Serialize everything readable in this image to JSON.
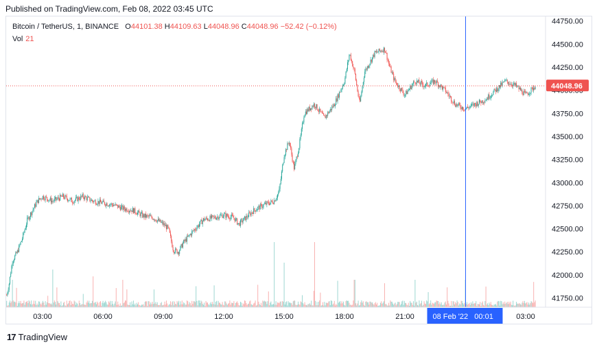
{
  "header": {
    "published": "Published on TradingView.com, Feb 08, 2022 03:45 UTC"
  },
  "legend": {
    "symbol": "Bitcoin / TetherUS, 1, BINANCE",
    "o_label": "O",
    "o_value": "44101.38",
    "h_label": "H",
    "h_value": "44109.63",
    "l_label": "L",
    "l_value": "44048.96",
    "c_label": "C",
    "c_value": "44048.96",
    "change": "−52.42 (−0.12%)",
    "vol_label": "Vol",
    "vol_value": "21"
  },
  "footer": {
    "logo_glyph": "17",
    "brand": "TradingView"
  },
  "colors": {
    "up": "#26a69a",
    "down": "#ef5350",
    "crosshair": "#2962ff",
    "axis_text": "#131722",
    "price_badge": "#ef5350",
    "time_badge": "#2962ff"
  },
  "chart_data": {
    "type": "candlestick",
    "ylim": [
      41650,
      44800
    ],
    "y_ticks": [
      "44750.00",
      "44500.00",
      "44250.00",
      "44000.00",
      "43750.00",
      "43500.00",
      "43250.00",
      "43000.00",
      "42750.00",
      "42500.00",
      "42250.00",
      "42000.00",
      "41750.00"
    ],
    "x_ticks": [
      "03:00",
      "06:00",
      "09:00",
      "12:00",
      "15:00",
      "18:00",
      "21:00",
      "03:00"
    ],
    "last_price_label": "44048.96",
    "last_price": 44048.96,
    "crosshair_time_label": "08 Feb '22   00:01",
    "price_path": [
      [
        "01:13",
        41780
      ],
      [
        "01:20",
        41900
      ],
      [
        "01:30",
        42150
      ],
      [
        "01:45",
        42250
      ],
      [
        "02:00",
        42400
      ],
      [
        "02:15",
        42600
      ],
      [
        "02:30",
        42700
      ],
      [
        "02:45",
        42800
      ],
      [
        "03:00",
        42850
      ],
      [
        "03:30",
        42800
      ],
      [
        "04:00",
        42850
      ],
      [
        "04:30",
        42800
      ],
      [
        "05:00",
        42850
      ],
      [
        "05:30",
        42800
      ],
      [
        "06:00",
        42780
      ],
      [
        "06:30",
        42760
      ],
      [
        "07:00",
        42720
      ],
      [
        "07:30",
        42700
      ],
      [
        "08:00",
        42640
      ],
      [
        "08:30",
        42620
      ],
      [
        "09:00",
        42550
      ],
      [
        "09:15",
        42500
      ],
      [
        "09:30",
        42270
      ],
      [
        "09:45",
        42250
      ],
      [
        "10:00",
        42350
      ],
      [
        "10:30",
        42480
      ],
      [
        "11:00",
        42600
      ],
      [
        "11:30",
        42620
      ],
      [
        "12:00",
        42650
      ],
      [
        "12:30",
        42620
      ],
      [
        "12:45",
        42550
      ],
      [
        "13:00",
        42600
      ],
      [
        "13:30",
        42700
      ],
      [
        "14:00",
        42760
      ],
      [
        "14:30",
        42800
      ],
      [
        "14:45",
        42900
      ],
      [
        "15:00",
        43300
      ],
      [
        "15:15",
        43450
      ],
      [
        "15:30",
        43150
      ],
      [
        "15:45",
        43400
      ],
      [
        "16:00",
        43750
      ],
      [
        "16:30",
        43850
      ],
      [
        "17:00",
        43700
      ],
      [
        "17:30",
        43850
      ],
      [
        "18:00",
        44100
      ],
      [
        "18:15",
        44400
      ],
      [
        "18:30",
        44200
      ],
      [
        "18:45",
        43850
      ],
      [
        "19:00",
        44200
      ],
      [
        "19:30",
        44400
      ],
      [
        "20:00",
        44450
      ],
      [
        "20:15",
        44250
      ],
      [
        "20:30",
        44100
      ],
      [
        "21:00",
        43950
      ],
      [
        "21:30",
        44100
      ],
      [
        "22:00",
        44050
      ],
      [
        "22:30",
        44100
      ],
      [
        "23:00",
        44000
      ],
      [
        "23:30",
        43850
      ],
      [
        "24:00",
        43800
      ],
      [
        "24:30",
        43850
      ],
      [
        "25:00",
        43900
      ],
      [
        "25:30",
        44000
      ],
      [
        "26:00",
        44100
      ],
      [
        "26:30",
        44050
      ],
      [
        "27:00",
        43950
      ],
      [
        "27:30",
        44048.96
      ]
    ],
    "volume_spikes": [
      [
        "01:30",
        40
      ],
      [
        "03:30",
        55
      ],
      [
        "05:30",
        45
      ],
      [
        "07:00",
        40
      ],
      [
        "14:30",
        95
      ],
      [
        "15:00",
        65
      ],
      [
        "16:30",
        95
      ],
      [
        "18:30",
        40
      ],
      [
        "20:00",
        35
      ],
      [
        "21:30",
        40
      ],
      [
        "24:00",
        40
      ]
    ]
  }
}
